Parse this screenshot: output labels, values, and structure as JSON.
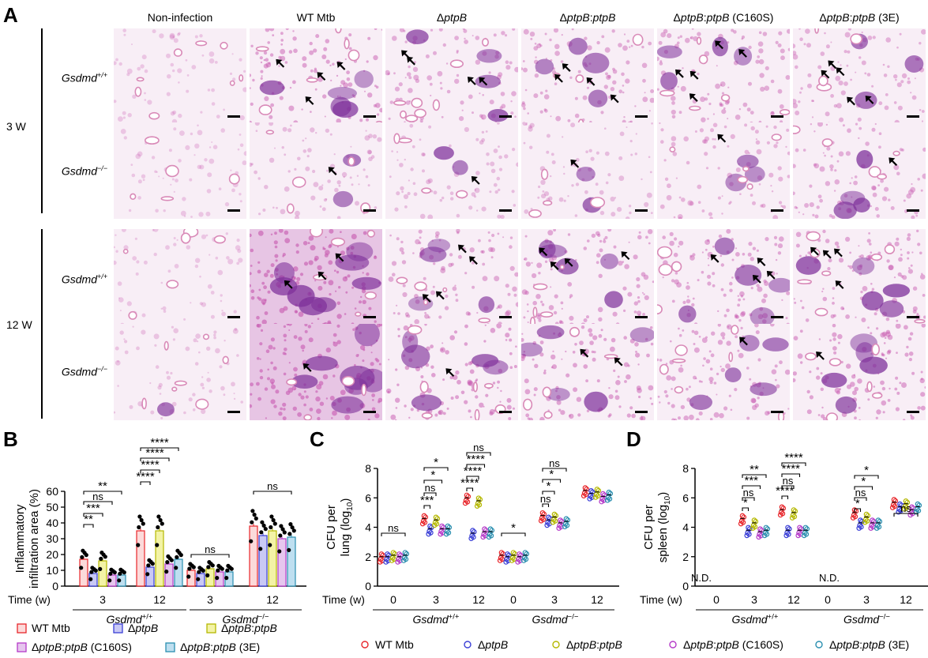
{
  "panels": {
    "A": "A",
    "B": "B",
    "C": "C",
    "D": "D"
  },
  "histology": {
    "columns": [
      "Non-infection",
      "WT Mtb",
      "ΔptpB",
      "ΔptpB:ptpB",
      "ΔptpB:ptpB (C160S)",
      "ΔptpB:ptpB (3E)"
    ],
    "rows": [
      {
        "week": "3 W",
        "genotype": "Gsdmd+/+",
        "arrows": [
          0,
          4,
          4,
          4,
          5,
          5
        ],
        "density": [
          0.05,
          0.55,
          0.4,
          0.45,
          0.45,
          0.35
        ]
      },
      {
        "week": "",
        "genotype": "Gsdmd−/−",
        "arrows": [
          0,
          1,
          1,
          1,
          1,
          1
        ],
        "density": [
          0.05,
          0.2,
          0.2,
          0.2,
          0.3,
          0.4
        ]
      },
      {
        "week": "12 W",
        "genotype": "Gsdmd+/+",
        "arrows": [
          0,
          3,
          4,
          4,
          4,
          4
        ],
        "density": [
          0.05,
          0.85,
          0.45,
          0.5,
          0.5,
          0.5
        ]
      },
      {
        "week": "",
        "genotype": "Gsdmd−/−",
        "arrows": [
          0,
          1,
          1,
          2,
          1,
          1
        ],
        "density": [
          0.1,
          0.8,
          0.6,
          0.55,
          0.5,
          0.55
        ]
      }
    ],
    "colors": {
      "tissue": "#c85ab0",
      "lesion": "#7e2f9a",
      "background": "#f8eef6",
      "vessel": "#d98ab8"
    }
  },
  "legend_groups": [
    "WT Mtb",
    "ΔptpB",
    "ΔptpB:ptpB",
    "ΔptpB:ptpB (C160S)",
    "ΔptpB:ptpB (3E)"
  ],
  "group_colors": [
    "#e8262b",
    "#3a3fd6",
    "#b5b800",
    "#b53ac8",
    "#2a8fb0"
  ],
  "bar_fills": [
    "#fcdada",
    "#c9c9f5",
    "#f3f3a6",
    "#e6c6ee",
    "#bedff0"
  ],
  "x_axis": {
    "time_label": "Time (w)",
    "group1": "Gsdmd+/+",
    "group2": "Gsdmd−/−",
    "nd": "N.D."
  },
  "chart_data": [
    {
      "type": "bar",
      "panel": "B",
      "ylabel": "Inflammatory infiltration area (%)",
      "ylim": [
        0,
        60
      ],
      "yticks": [
        0,
        10,
        20,
        30,
        40,
        50,
        60
      ],
      "categories": [
        "3",
        "12",
        "3",
        "12"
      ],
      "groups": [
        "Gsdmd+/+",
        "Gsdmd+/+",
        "Gsdmd−/−",
        "Gsdmd−/−"
      ],
      "series": [
        {
          "name": "WT Mtb",
          "values": [
            17,
            35,
            10,
            38
          ]
        },
        {
          "name": "ΔptpB",
          "values": [
            8,
            12,
            8,
            32
          ]
        },
        {
          "name": "ΔptpB:ptpB",
          "values": [
            16,
            35,
            11,
            35
          ]
        },
        {
          "name": "ΔptpB:ptpB (C160S)",
          "values": [
            7,
            14,
            9,
            30
          ]
        },
        {
          "name": "ΔptpB:ptpB (3E)",
          "values": [
            7,
            17,
            9,
            31
          ]
        }
      ],
      "significance": [
        "**",
        "***",
        "ns",
        "**",
        "****",
        "****",
        "****",
        "****",
        "ns",
        "ns"
      ]
    },
    {
      "type": "scatter",
      "panel": "C",
      "ylabel": "CFU per lung (log10)",
      "ylim": [
        0,
        8
      ],
      "yticks": [
        0,
        2,
        4,
        6,
        8
      ],
      "categories": [
        "0",
        "3",
        "12",
        "0",
        "3",
        "12"
      ],
      "groups": [
        "Gsdmd+/+",
        "Gsdmd+/+",
        "Gsdmd+/+",
        "Gsdmd−/−",
        "Gsdmd−/−",
        "Gsdmd−/−"
      ],
      "series": [
        {
          "name": "WT Mtb",
          "values": [
            2.0,
            4.6,
            6.0,
            2.1,
            4.8,
            6.5
          ]
        },
        {
          "name": "ΔptpB",
          "values": [
            2.0,
            3.9,
            3.6,
            2.0,
            4.5,
            6.3
          ]
        },
        {
          "name": "ΔptpB:ptpB",
          "values": [
            2.1,
            4.5,
            5.8,
            2.1,
            4.7,
            6.4
          ]
        },
        {
          "name": "ΔptpB:ptpB (C160S)",
          "values": [
            2.0,
            3.9,
            3.7,
            2.0,
            4.3,
            6.1
          ]
        },
        {
          "name": "ΔptpB:ptpB (3E)",
          "values": [
            2.1,
            3.9,
            3.7,
            2.1,
            4.4,
            6.2
          ]
        }
      ],
      "significance": [
        "ns",
        "***",
        "ns",
        "*",
        "*",
        "****",
        "****",
        "****",
        "ns",
        "*",
        "ns",
        "*",
        "*",
        "ns"
      ]
    },
    {
      "type": "scatter",
      "panel": "D",
      "ylabel": "CFU per spleen (log10)",
      "ylim": [
        0,
        8
      ],
      "yticks": [
        0,
        2,
        4,
        6,
        8
      ],
      "categories": [
        "0",
        "3",
        "12",
        "0",
        "3",
        "12"
      ],
      "groups": [
        "Gsdmd+/+",
        "Gsdmd+/+",
        "Gsdmd+/+",
        "Gsdmd−/−",
        "Gsdmd−/−",
        "Gsdmd−/−"
      ],
      "series": [
        {
          "name": "WT Mtb",
          "values": [
            null,
            4.6,
            5.2,
            null,
            5.0,
            5.7
          ]
        },
        {
          "name": "ΔptpB",
          "values": [
            null,
            3.8,
            3.8,
            null,
            4.3,
            5.4
          ]
        },
        {
          "name": "ΔptpB:ptpB",
          "values": [
            null,
            4.3,
            5.0,
            null,
            4.7,
            5.6
          ]
        },
        {
          "name": "ΔptpB:ptpB (C160S)",
          "values": [
            null,
            3.7,
            3.8,
            null,
            4.3,
            5.2
          ]
        },
        {
          "name": "ΔptpB:ptpB (3E)",
          "values": [
            null,
            3.8,
            3.8,
            null,
            4.3,
            5.4
          ]
        }
      ],
      "significance": [
        "*",
        "ns",
        "***",
        "**",
        "****",
        "ns",
        "****",
        "****",
        "*",
        "ns",
        "*",
        "*",
        "ns"
      ]
    }
  ]
}
